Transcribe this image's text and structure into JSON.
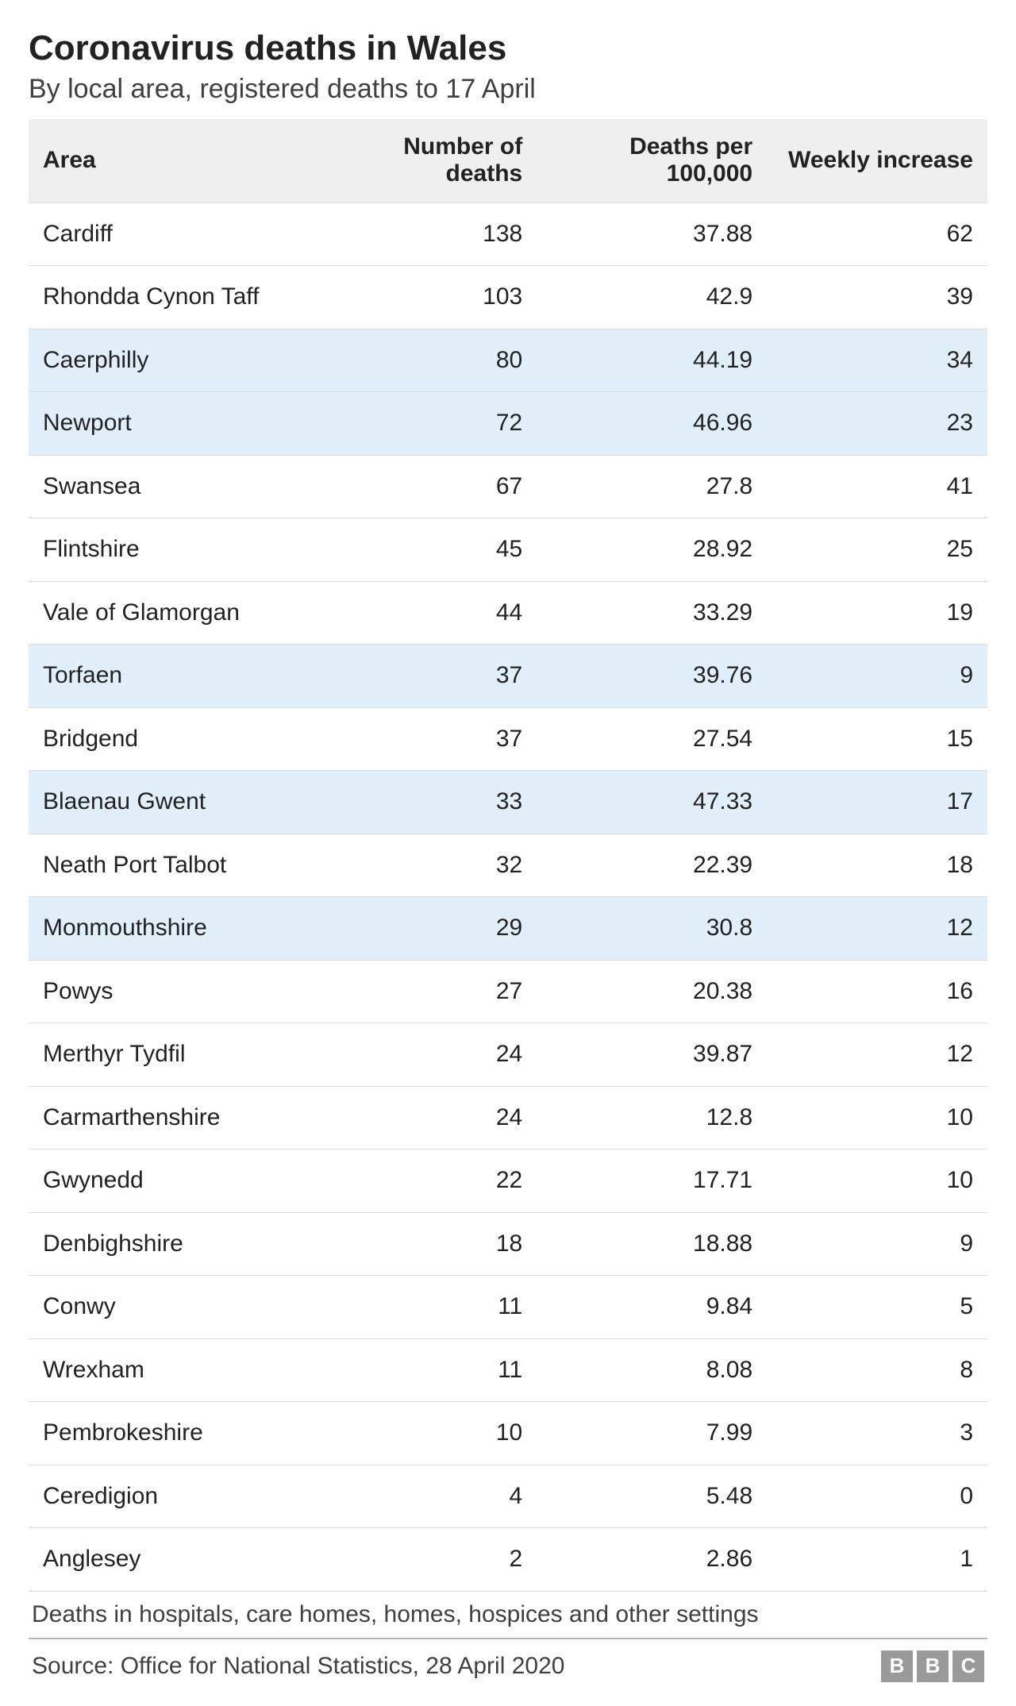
{
  "title": "Coronavirus deaths in Wales",
  "subtitle": "By local area, registered deaths to 17 April",
  "columns": [
    "Area",
    "Number of deaths",
    "Deaths per 100,000",
    "Weekly increase"
  ],
  "highlight_color": "#e1effb",
  "header_bg": "#efefef",
  "border_color": "#dcdcdc",
  "text_color": "#222222",
  "subtext_color": "#404040",
  "background_color": "#ffffff",
  "title_fontsize": 44,
  "subtitle_fontsize": 34,
  "cell_fontsize": 30,
  "rows": [
    {
      "area": "Cardiff",
      "deaths": 138,
      "per100k": "37.88",
      "weekly": 62,
      "highlight": false
    },
    {
      "area": "Rhondda Cynon Taff",
      "deaths": 103,
      "per100k": "42.9",
      "weekly": 39,
      "highlight": false
    },
    {
      "area": "Caerphilly",
      "deaths": 80,
      "per100k": "44.19",
      "weekly": 34,
      "highlight": true
    },
    {
      "area": "Newport",
      "deaths": 72,
      "per100k": "46.96",
      "weekly": 23,
      "highlight": true
    },
    {
      "area": "Swansea",
      "deaths": 67,
      "per100k": "27.8",
      "weekly": 41,
      "highlight": false
    },
    {
      "area": "Flintshire",
      "deaths": 45,
      "per100k": "28.92",
      "weekly": 25,
      "highlight": false
    },
    {
      "area": "Vale of Glamorgan",
      "deaths": 44,
      "per100k": "33.29",
      "weekly": 19,
      "highlight": false
    },
    {
      "area": "Torfaen",
      "deaths": 37,
      "per100k": "39.76",
      "weekly": 9,
      "highlight": true
    },
    {
      "area": "Bridgend",
      "deaths": 37,
      "per100k": "27.54",
      "weekly": 15,
      "highlight": false
    },
    {
      "area": "Blaenau Gwent",
      "deaths": 33,
      "per100k": "47.33",
      "weekly": 17,
      "highlight": true
    },
    {
      "area": "Neath Port Talbot",
      "deaths": 32,
      "per100k": "22.39",
      "weekly": 18,
      "highlight": false
    },
    {
      "area": "Monmouthshire",
      "deaths": 29,
      "per100k": "30.8",
      "weekly": 12,
      "highlight": true
    },
    {
      "area": "Powys",
      "deaths": 27,
      "per100k": "20.38",
      "weekly": 16,
      "highlight": false
    },
    {
      "area": "Merthyr Tydfil",
      "deaths": 24,
      "per100k": "39.87",
      "weekly": 12,
      "highlight": false
    },
    {
      "area": "Carmarthenshire",
      "deaths": 24,
      "per100k": "12.8",
      "weekly": 10,
      "highlight": false
    },
    {
      "area": "Gwynedd",
      "deaths": 22,
      "per100k": "17.71",
      "weekly": 10,
      "highlight": false
    },
    {
      "area": "Denbighshire",
      "deaths": 18,
      "per100k": "18.88",
      "weekly": 9,
      "highlight": false
    },
    {
      "area": "Conwy",
      "deaths": 11,
      "per100k": "9.84",
      "weekly": 5,
      "highlight": false
    },
    {
      "area": "Wrexham",
      "deaths": 11,
      "per100k": "8.08",
      "weekly": 8,
      "highlight": false
    },
    {
      "area": "Pembrokeshire",
      "deaths": 10,
      "per100k": "7.99",
      "weekly": 3,
      "highlight": false
    },
    {
      "area": "Ceredigion",
      "deaths": 4,
      "per100k": "5.48",
      "weekly": 0,
      "highlight": false
    },
    {
      "area": "Anglesey",
      "deaths": 2,
      "per100k": "2.86",
      "weekly": 1,
      "highlight": false
    }
  ],
  "footnote": "Deaths in hospitals, care homes, homes, hospices and other settings",
  "source": "Source: Office for National Statistics, 28 April 2020",
  "logo_letters": [
    "B",
    "B",
    "C"
  ],
  "logo_bg": "#9a9a9a",
  "logo_fg": "#ffffff"
}
